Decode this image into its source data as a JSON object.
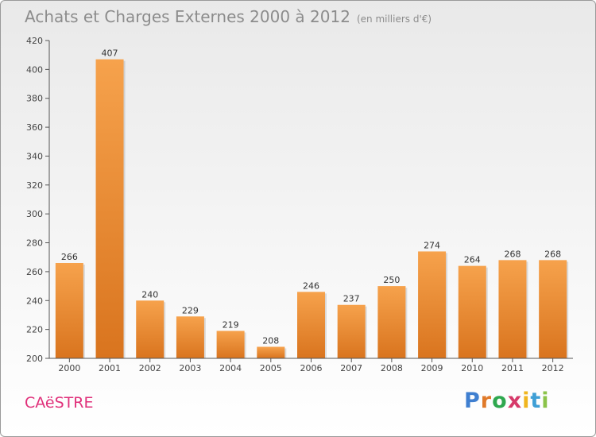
{
  "header": {
    "title": "Achats et Charges Externes 2000 à 2012",
    "subtitle": "(en milliers d'€)"
  },
  "footer": {
    "city": "CAëSTRE",
    "logo_letters": [
      "P",
      "r",
      "o",
      "x",
      "i",
      "t",
      "i"
    ],
    "logo_colors": [
      "#3f7fd0",
      "#e07a2a",
      "#2fa84f",
      "#d63a6a",
      "#f0b51e",
      "#3f9fd6",
      "#8bc34a"
    ]
  },
  "colors": {
    "bar_light": "#f6a24c",
    "bar_dark": "#d9741e",
    "axis": "#555555",
    "grid": "#cfcfcf"
  },
  "chart_data": {
    "type": "bar",
    "title": "Achats et Charges Externes 2000 à 2012",
    "categories": [
      "2000",
      "2001",
      "2002",
      "2003",
      "2004",
      "2005",
      "2006",
      "2007",
      "2008",
      "2009",
      "2010",
      "2011",
      "2012"
    ],
    "values": [
      266,
      407,
      240,
      229,
      219,
      208,
      246,
      237,
      250,
      274,
      264,
      268,
      268
    ],
    "ylim": [
      200,
      420
    ],
    "yticks": [
      200,
      220,
      240,
      260,
      280,
      300,
      320,
      340,
      360,
      380,
      400,
      420
    ],
    "grid": false
  }
}
